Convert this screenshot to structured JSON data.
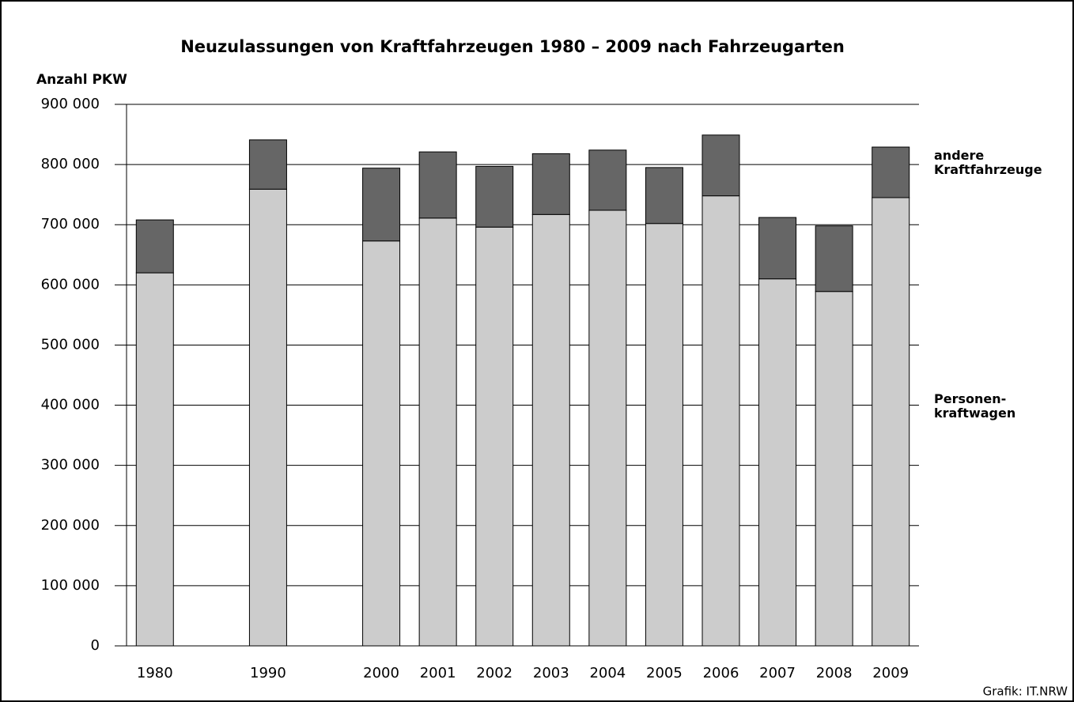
{
  "chart_data": {
    "type": "stacked-bar",
    "title": "Neuzulassungen von Kraftfahrzeugen 1980 – 2009 nach Fahrzeugarten",
    "y_label": "Anzahl PKW",
    "source": "Grafik: IT.NRW",
    "categories": [
      "1980",
      null,
      "1990",
      null,
      "2000",
      "2001",
      "2002",
      "2003",
      "2004",
      "2005",
      "2006",
      "2007",
      "2008",
      "2009"
    ],
    "series": [
      {
        "name": "Personen-\nkraftwagen",
        "color": "#cccccc",
        "values": [
          620000,
          null,
          759000,
          null,
          673000,
          711000,
          696000,
          717000,
          724000,
          702000,
          748000,
          610000,
          589000,
          745000
        ]
      },
      {
        "name": "andere\nKraftfahrzeuge",
        "color": "#666666",
        "values": [
          88000,
          null,
          82000,
          null,
          121000,
          110000,
          101000,
          101000,
          100000,
          93000,
          101000,
          102000,
          109000,
          84000
        ]
      }
    ],
    "ylim": [
      0,
      900000
    ],
    "yticks": [
      0,
      {
        "value": 100000,
        "label": "100 000"
      },
      {
        "value": 200000,
        "label": "200 000"
      },
      {
        "value": 300000,
        "label": "300 000"
      },
      {
        "value": 400000,
        "label": "400 000"
      },
      {
        "value": 500000,
        "label": "500 000"
      },
      {
        "value": 600000,
        "label": "600 000"
      },
      {
        "value": 700000,
        "label": "700 000"
      },
      {
        "value": 800000,
        "label": "800 000"
      },
      {
        "value": 900000,
        "label": "900 000"
      }
    ],
    "grid": true
  }
}
